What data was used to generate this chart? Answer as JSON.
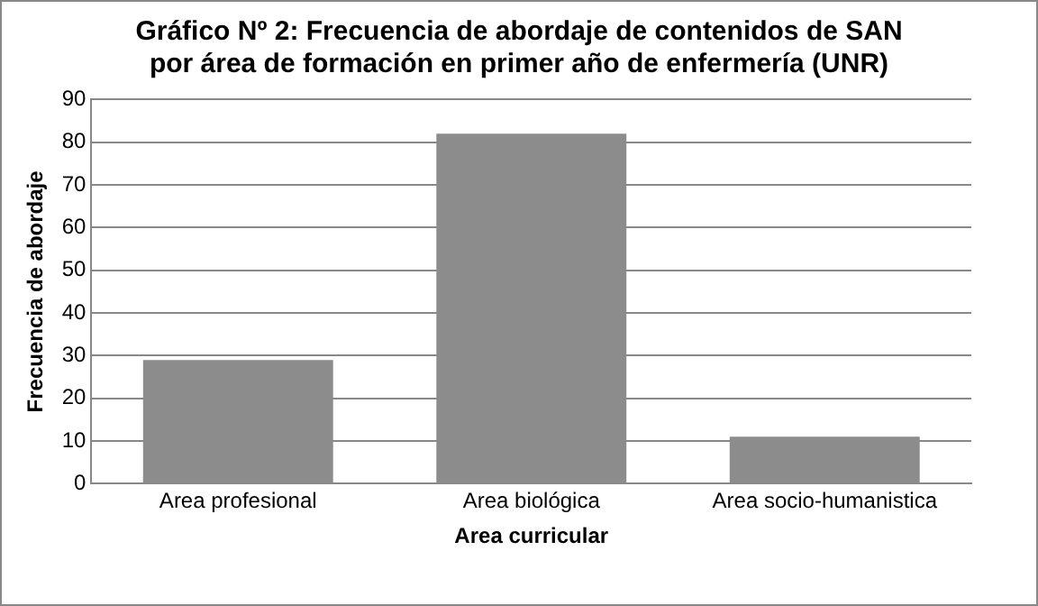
{
  "chart_data": {
    "type": "bar",
    "title": "Gráfico Nº 2: Frecuencia de abordaje de contenidos de SAN por área de formación en primer año de enfermería (UNR)",
    "xlabel": "Area curricular",
    "ylabel": "Frecuencia de abordaje",
    "categories": [
      "Area profesional",
      "Area biológica",
      "Area socio-humanistica"
    ],
    "values": [
      29,
      82,
      11
    ],
    "color": "#8c8c8c",
    "ylim": [
      0,
      90
    ],
    "yticks": [
      0,
      10,
      20,
      30,
      40,
      50,
      60,
      70,
      80,
      90
    ],
    "grid": "y",
    "legend": false
  }
}
